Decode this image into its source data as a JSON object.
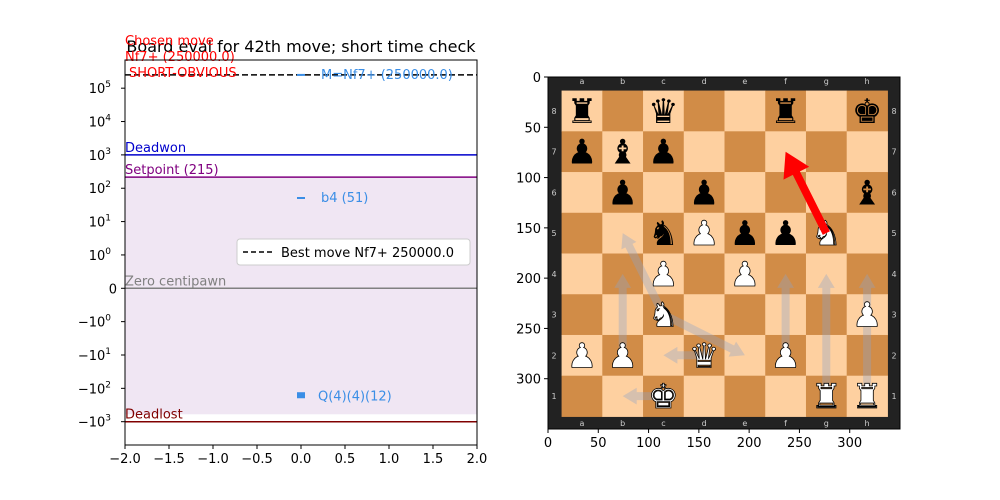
{
  "chart_data": [
    {
      "type": "scatter",
      "title": "Board eval for 42th move; short time check",
      "xlabel": "",
      "ylabel": "",
      "y_scale": "symlog",
      "xlim": [
        -2.0,
        2.0
      ],
      "ylim": [
        -5000,
        700000
      ],
      "x_ticks": [
        -2.0,
        -1.5,
        -1.0,
        -0.5,
        0.0,
        0.5,
        1.0,
        1.5,
        2.0
      ],
      "x_tick_labels": [
        "−2.0",
        "−1.5",
        "−1.0",
        "−0.5",
        "0.0",
        "0.5",
        "1.0",
        "1.5",
        "2.0"
      ],
      "y_ticks": [
        {
          "value": 100000,
          "base": "10",
          "exp": "5"
        },
        {
          "value": 10000,
          "base": "10",
          "exp": "4"
        },
        {
          "value": 1000,
          "base": "10",
          "exp": "3"
        },
        {
          "value": 100,
          "base": "10",
          "exp": "2"
        },
        {
          "value": 10,
          "base": "10",
          "exp": "1"
        },
        {
          "value": 1,
          "base": "10",
          "exp": "0"
        },
        {
          "value": 0,
          "base": "0",
          "exp": ""
        },
        {
          "value": -1,
          "base": "−10",
          "exp": "0"
        },
        {
          "value": -10,
          "base": "−10",
          "exp": "1"
        },
        {
          "value": -100,
          "base": "−10",
          "exp": "2"
        },
        {
          "value": -1000,
          "base": "−10",
          "exp": "3"
        }
      ],
      "shaded_region": {
        "from": -600,
        "to": 215,
        "color": "#f0e6f3"
      },
      "hlines": [
        {
          "name": "best-move-line",
          "value": 250000,
          "color": "#000000",
          "dashed": true
        },
        {
          "name": "deadwon-line",
          "value": 1000,
          "color": "#0000cc",
          "label": "Deadwon"
        },
        {
          "name": "setpoint-line",
          "value": 215,
          "color": "#800080",
          "label": "Setpoint (215)"
        },
        {
          "name": "zero-line",
          "value": 0,
          "color": "#808080",
          "label": "Zero centipawn"
        },
        {
          "name": "deadlost-line",
          "value": -1000,
          "color": "#800000",
          "label": "Deadlost"
        }
      ],
      "points": [
        {
          "x": 0.0,
          "y": 250000,
          "label": "M=Nf7+ (250000.0)"
        },
        {
          "x": 0.0,
          "y": 51,
          "label": "b4 (51)"
        },
        {
          "x": 0.0,
          "y": -140,
          "label": ""
        },
        {
          "x": 0.0,
          "y": -155,
          "label": ""
        },
        {
          "x": 0.0,
          "y": -170,
          "label": ""
        },
        {
          "x": 0.0,
          "y": -185,
          "label": ""
        }
      ],
      "overlap_labels": {
        "x": 0.0,
        "y": -165,
        "text": "Q(4)(4)(12)"
      },
      "annotations": {
        "chosen_move": "Chosen move",
        "chosen_value": "Nf7+ (250000.0)",
        "short_obvious": "SHORT-OBVIOUS"
      },
      "legend": {
        "placement": "center-right",
        "entries": [
          {
            "label": "Best move Nf7+ 250000.0",
            "style": "dashed"
          }
        ]
      },
      "colors": {
        "points": "#3a8ee6",
        "annotation": "#ff0000"
      }
    },
    {
      "type": "chessboard",
      "xlim": [
        0,
        350
      ],
      "ylim": [
        350,
        0
      ],
      "x_ticks": [
        0,
        50,
        100,
        150,
        200,
        250,
        300
      ],
      "y_ticks": [
        0,
        50,
        100,
        150,
        200,
        250,
        300
      ],
      "files": [
        "a",
        "b",
        "c",
        "d",
        "e",
        "f",
        "g",
        "h"
      ],
      "ranks": [
        "8",
        "7",
        "6",
        "5",
        "4",
        "3",
        "2",
        "1"
      ],
      "colors": {
        "light": "#fed0a0",
        "dark": "#d18c47",
        "border": "#222222",
        "arrow": "#ff0000"
      },
      "pieces": [
        {
          "square": "a8",
          "glyph": "♜",
          "color": "black"
        },
        {
          "square": "c8",
          "glyph": "♛",
          "color": "black"
        },
        {
          "square": "f8",
          "glyph": "♜",
          "color": "black"
        },
        {
          "square": "h8",
          "glyph": "♚",
          "color": "black"
        },
        {
          "square": "a7",
          "glyph": "♟",
          "color": "black"
        },
        {
          "square": "b7",
          "glyph": "♝",
          "color": "black"
        },
        {
          "square": "c7",
          "glyph": "♟",
          "color": "black"
        },
        {
          "square": "b6",
          "glyph": "♟",
          "color": "black"
        },
        {
          "square": "d6",
          "glyph": "♟",
          "color": "black"
        },
        {
          "square": "h6",
          "glyph": "♝",
          "color": "black"
        },
        {
          "square": "c5",
          "glyph": "♞",
          "color": "black"
        },
        {
          "square": "d5",
          "glyph": "♙",
          "color": "white"
        },
        {
          "square": "e5",
          "glyph": "♟",
          "color": "black"
        },
        {
          "square": "f5",
          "glyph": "♟",
          "color": "black"
        },
        {
          "square": "g5",
          "glyph": "♘",
          "color": "white"
        },
        {
          "square": "c4",
          "glyph": "♙",
          "color": "white"
        },
        {
          "square": "e4",
          "glyph": "♙",
          "color": "white"
        },
        {
          "square": "c3",
          "glyph": "♘",
          "color": "white"
        },
        {
          "square": "h3",
          "glyph": "♙",
          "color": "white"
        },
        {
          "square": "a2",
          "glyph": "♙",
          "color": "white"
        },
        {
          "square": "b2",
          "glyph": "♙",
          "color": "white"
        },
        {
          "square": "d2",
          "glyph": "♕",
          "color": "white"
        },
        {
          "square": "f2",
          "glyph": "♙",
          "color": "white"
        },
        {
          "square": "c1",
          "glyph": "♔",
          "color": "white"
        },
        {
          "square": "g1",
          "glyph": "♖",
          "color": "white"
        },
        {
          "square": "h1",
          "glyph": "♖",
          "color": "white"
        }
      ],
      "move_arrow": {
        "from": "g5",
        "to": "f7"
      },
      "faint_arrows": [
        {
          "from": "b2",
          "to": "b4"
        },
        {
          "from": "c3",
          "to": "b5"
        },
        {
          "from": "c3",
          "to": "e2"
        },
        {
          "from": "c1",
          "to": "b1"
        },
        {
          "from": "f2",
          "to": "f4"
        },
        {
          "from": "g1",
          "to": "g4"
        },
        {
          "from": "h1",
          "to": "h4"
        },
        {
          "from": "d2",
          "to": "c2"
        }
      ]
    }
  ]
}
